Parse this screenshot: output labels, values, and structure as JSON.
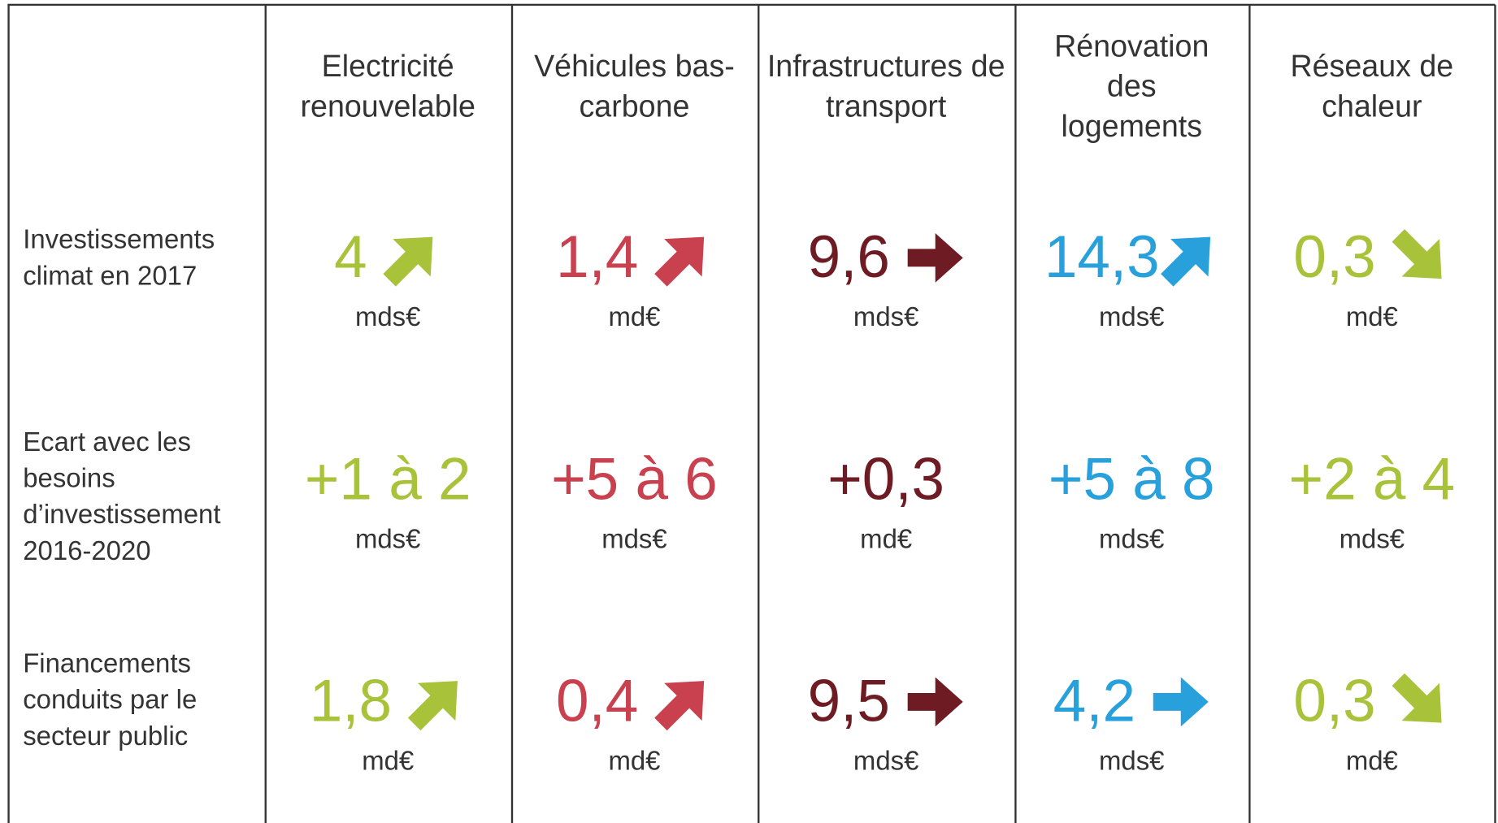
{
  "columns": [
    "Electricité renouvelable",
    "Véhicules bas-carbone",
    "Infrastructures de transport",
    "Rénovation des logements",
    "Réseaux de chaleur"
  ],
  "rows": [
    {
      "label": "Investissements climat en 2017",
      "cells": [
        {
          "value": "4",
          "unit": "mds€"
        },
        {
          "value": "1,4",
          "unit": "md€"
        },
        {
          "value": "9,6",
          "unit": "mds€"
        },
        {
          "value": "14,3",
          "unit": "mds€"
        },
        {
          "value": "0,3",
          "unit": "md€"
        }
      ]
    },
    {
      "label": "Ecart avec les besoins d’investissement 2016-2020",
      "cells": [
        {
          "value": "+1 à 2",
          "unit": "mds€"
        },
        {
          "value": "+5 à 6",
          "unit": "mds€"
        },
        {
          "value": "+0,3",
          "unit": "md€"
        },
        {
          "value": "+5 à 8",
          "unit": "mds€"
        },
        {
          "value": "+2 à 4",
          "unit": "mds€"
        }
      ]
    },
    {
      "label": "Financements conduits par le secteur public",
      "cells": [
        {
          "value": "1,8",
          "unit": "md€"
        },
        {
          "value": "0,4",
          "unit": "md€"
        },
        {
          "value": "9,5",
          "unit": "mds€"
        },
        {
          "value": "4,2",
          "unit": "mds€"
        },
        {
          "value": "0,3",
          "unit": "md€"
        }
      ]
    }
  ]
}
